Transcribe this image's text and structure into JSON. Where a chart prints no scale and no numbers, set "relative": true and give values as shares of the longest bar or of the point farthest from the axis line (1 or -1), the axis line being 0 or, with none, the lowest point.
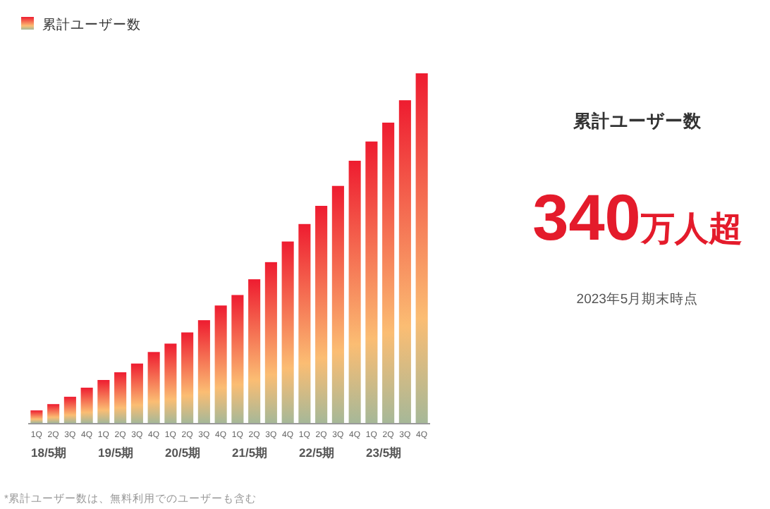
{
  "chart_data": [
    {
      "type": "bar",
      "relative": true,
      "categories": [
        "1Q",
        "2Q",
        "3Q",
        "4Q",
        "1Q",
        "2Q",
        "3Q",
        "4Q",
        "1Q",
        "2Q",
        "3Q",
        "4Q",
        "1Q",
        "2Q",
        "3Q",
        "4Q",
        "1Q",
        "2Q",
        "3Q",
        "4Q",
        "1Q",
        "2Q",
        "3Q",
        "4Q"
      ],
      "series": [
        {
          "name": "累計ユーザー数",
          "color": "#ee1c30",
          "values": [
            0.036,
            0.054,
            0.075,
            0.101,
            0.123,
            0.145,
            0.17,
            0.203,
            0.227,
            0.259,
            0.294,
            0.336,
            0.366,
            0.411,
            0.46,
            0.519,
            0.569,
            0.621,
            0.678,
            0.75,
            0.805,
            0.859,
            0.923,
            1
          ]
        }
      ],
      "legend": "top left",
      "annotations": [
        "18/5期",
        "19/5期",
        "20/5期",
        "21/5期",
        "22/5期",
        "23/5期",
        "*累計ユーザー数は、無料利用でのユーザーも含む"
      ]
    },
    {
      "type": "other",
      "title": "累計ユーザー数",
      "annotations": [
        "340万人超"
      ],
      "subtitle": "2023年5月期末時点"
    }
  ]
}
